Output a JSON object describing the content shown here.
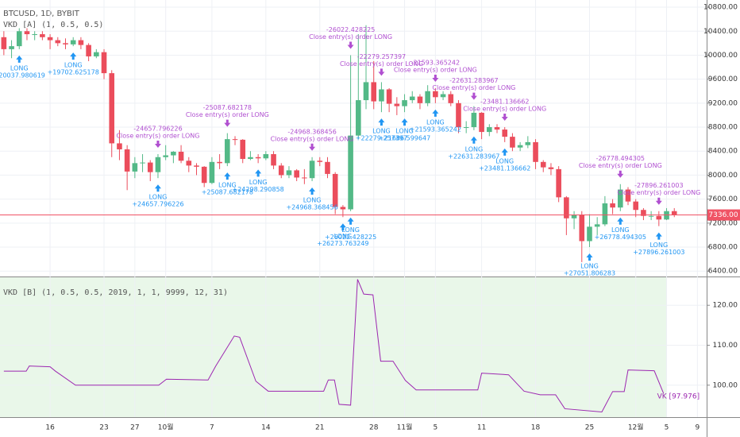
{
  "chart_data": [
    {
      "type": "candlestick",
      "title": "BTCUSD, 1D, BYBIT",
      "subtitle": "VKD [A] (1, 0.5, 0.5)",
      "x": [
        0,
        1,
        2,
        3,
        4,
        5,
        6,
        7,
        8,
        9,
        10,
        11,
        12,
        13,
        14,
        15,
        16,
        17,
        18,
        19,
        20,
        21,
        22,
        23,
        24,
        25,
        26,
        27,
        28,
        29,
        30,
        31,
        32,
        33,
        34,
        35,
        36,
        37,
        38,
        39,
        40,
        41,
        42,
        43,
        44,
        45,
        46,
        47,
        48,
        49,
        50,
        51,
        52,
        53,
        54,
        55,
        56,
        57,
        58,
        59,
        60,
        61,
        62,
        63,
        64,
        65,
        66,
        67,
        68,
        69,
        70,
        71,
        72,
        73,
        74,
        75,
        76,
        77,
        78,
        79,
        80,
        81,
        82,
        83,
        84,
        85,
        86,
        87
      ],
      "open": [
        10300,
        10100,
        10150,
        10400,
        10350,
        10350,
        10300,
        10250,
        10200,
        10180,
        10250,
        10170,
        9980,
        10050,
        9700,
        8530,
        8430,
        8060,
        8200,
        8210,
        8050,
        8300,
        8330,
        8390,
        8240,
        8160,
        8140,
        7870,
        8220,
        8200,
        8600,
        8590,
        8270,
        8300,
        8280,
        8350,
        8160,
        8000,
        8080,
        7960,
        7950,
        8240,
        8220,
        8020,
        7470,
        7430,
        8660,
        9250,
        9550,
        9230,
        9430,
        9190,
        9150,
        9250,
        9310,
        9200,
        9400,
        9300,
        9350,
        9200,
        8800,
        8800,
        9040,
        8720,
        8800,
        8760,
        8640,
        8460,
        8500,
        8550,
        8220,
        8130,
        8100,
        7630,
        7280,
        7330,
        6900,
        7140,
        7180,
        7530,
        7460,
        7760,
        7560,
        7420,
        7320,
        7320,
        7260,
        7400
      ],
      "high": [
        10400,
        10250,
        10450,
        10450,
        10400,
        10400,
        10350,
        10300,
        10280,
        10300,
        10300,
        10200,
        10100,
        10100,
        9750,
        8750,
        8500,
        8300,
        8350,
        8250,
        8350,
        8500,
        8400,
        8500,
        8300,
        8200,
        8150,
        8300,
        8350,
        8700,
        8650,
        8600,
        8400,
        8350,
        8400,
        8400,
        8200,
        8150,
        8100,
        8100,
        8300,
        8300,
        8300,
        8050,
        7500,
        10000,
        10350,
        10500,
        9900,
        9550,
        9450,
        9300,
        9350,
        9400,
        9350,
        9500,
        9450,
        9400,
        9400,
        9250,
        8900,
        9150,
        9050,
        8850,
        8850,
        8800,
        8700,
        8550,
        8650,
        8600,
        8250,
        8200,
        8150,
        7650,
        7400,
        7400,
        7350,
        7300,
        7650,
        7600,
        7850,
        7800,
        7600,
        7450,
        7400,
        7400,
        7450,
        7450
      ],
      "low": [
        10000,
        9950,
        10100,
        10250,
        10250,
        10250,
        10100,
        10150,
        10100,
        10150,
        10100,
        9900,
        9950,
        9600,
        8300,
        8250,
        7750,
        7950,
        8050,
        7900,
        7950,
        8250,
        8200,
        8200,
        8050,
        8000,
        7800,
        7850,
        8100,
        8150,
        8500,
        8200,
        8250,
        8200,
        8250,
        8100,
        7950,
        7950,
        7900,
        7850,
        7900,
        8150,
        7950,
        7350,
        7300,
        7400,
        8600,
        9100,
        9100,
        9050,
        9050,
        9000,
        9050,
        9200,
        9100,
        9150,
        9200,
        9250,
        9150,
        8700,
        8700,
        8750,
        8600,
        8650,
        8700,
        8550,
        8400,
        8400,
        8450,
        8100,
        8050,
        8000,
        7550,
        7000,
        7100,
        6550,
        6800,
        7000,
        7150,
        7350,
        7400,
        7500,
        7300,
        7250,
        7250,
        7150,
        7250,
        7300
      ],
      "close": [
        10100,
        10150,
        10400,
        10350,
        10350,
        10300,
        10250,
        10200,
        10180,
        10250,
        10170,
        9980,
        10050,
        9700,
        8530,
        8430,
        8060,
        8200,
        8210,
        8050,
        8300,
        8330,
        8390,
        8240,
        8160,
        8140,
        7870,
        8220,
        8200,
        8600,
        8590,
        8270,
        8300,
        8280,
        8350,
        8160,
        8000,
        8080,
        7960,
        7950,
        8240,
        8220,
        8020,
        7470,
        7430,
        8660,
        9250,
        9550,
        9230,
        9430,
        9190,
        9150,
        9250,
        9310,
        9200,
        9400,
        9300,
        9350,
        9200,
        8800,
        8800,
        9040,
        8720,
        8800,
        8760,
        8640,
        8460,
        8500,
        8550,
        8220,
        8130,
        8100,
        7630,
        7280,
        7330,
        6900,
        7140,
        7180,
        7530,
        7460,
        7760,
        7560,
        7420,
        7320,
        7320,
        7260,
        7400,
        7336
      ],
      "up_color": "#53b987",
      "down_color": "#eb4d5c",
      "xlim": [
        -0.5,
        91.2
      ],
      "xticks": [
        {
          "value": 6,
          "label": "16"
        },
        {
          "value": 13,
          "label": "23"
        },
        {
          "value": 17,
          "label": "27"
        },
        {
          "value": 21,
          "label": "10월"
        },
        {
          "value": 27,
          "label": "7"
        },
        {
          "value": 34,
          "label": "14"
        },
        {
          "value": 41,
          "label": "21"
        },
        {
          "value": 48,
          "label": "28"
        },
        {
          "value": 52,
          "label": "11월"
        },
        {
          "value": 56,
          "label": "5"
        },
        {
          "value": 62,
          "label": "11"
        },
        {
          "value": 69,
          "label": "18"
        },
        {
          "value": 76,
          "label": "25"
        },
        {
          "value": 82,
          "label": "12월"
        },
        {
          "value": 86,
          "label": "5"
        },
        {
          "value": 90,
          "label": "9"
        }
      ],
      "ylim": [
        6310,
        10920
      ],
      "yticks": [
        {
          "value": 10800,
          "label": "10800.00"
        },
        {
          "value": 10400,
          "label": "10400.00"
        },
        {
          "value": 10000,
          "label": "10000.00"
        },
        {
          "value": 9600,
          "label": "9600.00"
        },
        {
          "value": 9200,
          "label": "9200.00"
        },
        {
          "value": 8800,
          "label": "8800.00"
        },
        {
          "value": 8400,
          "label": "8400.00"
        },
        {
          "value": 8000,
          "label": "8000.00"
        },
        {
          "value": 7600,
          "label": "7600.00"
        },
        {
          "value": 7200,
          "label": "7200.00"
        },
        {
          "value": 6800,
          "label": "6800.00"
        },
        {
          "value": 6400,
          "label": "6400.00"
        }
      ],
      "grid": true,
      "last_price": 7336,
      "last_price_label": "7336.00",
      "last_price_color": "#f05365",
      "entry_label": "LONG",
      "close_label": "Close entry(s) order LONG",
      "entry_color": "#2196f3",
      "close_color": "#b04fd0",
      "trades": [
        {
          "day": 2,
          "entry": "+20037.980619"
        },
        {
          "day": 9,
          "entry": "+19702.625178"
        },
        {
          "day": 20,
          "entry": "+24657.796226",
          "close": "-24657.796226"
        },
        {
          "day": 29,
          "entry": "+25087.682178",
          "close": "-25087.682178"
        },
        {
          "day": 33,
          "entry": "+24298.290858"
        },
        {
          "day": 40,
          "entry": "+24968.368456",
          "close": "-24968.368456"
        },
        {
          "day": 44,
          "entry": "+26273.763249"
        },
        {
          "day": 45,
          "entry": "+26022.428225",
          "close": "-26022.428225"
        },
        {
          "day": 49,
          "entry": "+22279.257397",
          "close": "-22279.257397"
        },
        {
          "day": 52,
          "entry": "+21686.599647"
        },
        {
          "day": 56,
          "entry": "+21593.365242",
          "close": "-21593.365242"
        },
        {
          "day": 61,
          "entry": "+22631.283967",
          "close": "-22631.283967"
        },
        {
          "day": 65,
          "entry": "+23481.136662",
          "close": "-23481.136662"
        },
        {
          "day": 76,
          "entry": "+27051.806283"
        },
        {
          "day": 80,
          "entry": "+26778.494305",
          "close": "-26778.494305"
        },
        {
          "day": 85,
          "entry": "+27896.261003",
          "close": "-27896.261003"
        }
      ]
    },
    {
      "type": "line",
      "title": "VKD [B] (1, 0.5, 0.5, 2019, 1, 1, 9999, 12, 31)",
      "x": [
        0,
        2.9,
        3.3,
        6,
        6.7,
        9.3,
        20.1,
        21.1,
        26.5,
        27.5,
        29.9,
        30.6,
        32.7,
        34.3,
        41.5,
        42.1,
        42.9,
        43.5,
        45,
        45.9,
        46.7,
        47.9,
        48.9,
        50.5,
        52.1,
        53.5,
        61.5,
        62,
        65.5,
        67.5,
        69.6,
        71.6,
        72.8,
        77.6,
        79,
        80.5,
        81,
        84.4,
        85.6
      ],
      "values": [
        103.5,
        103.5,
        104.8,
        104.6,
        103.5,
        100,
        100,
        101.5,
        101.3,
        104.8,
        112.3,
        112,
        101,
        98.5,
        98.5,
        101.3,
        101.3,
        95.2,
        95,
        126.5,
        122.8,
        122.6,
        106,
        106,
        101.2,
        98.8,
        98.8,
        103,
        102.6,
        98.5,
        97.6,
        97.6,
        94.1,
        93.3,
        98.4,
        98.4,
        103.8,
        103.6,
        97.976
      ],
      "end_label": "VK [97.976]",
      "color": "#9c27b0",
      "ylim": [
        92,
        127
      ],
      "yticks": [
        {
          "value": 100,
          "label": "100.00"
        },
        {
          "value": 110,
          "label": "110.00"
        },
        {
          "value": 120,
          "label": "120.00"
        }
      ],
      "grid": true
    }
  ]
}
